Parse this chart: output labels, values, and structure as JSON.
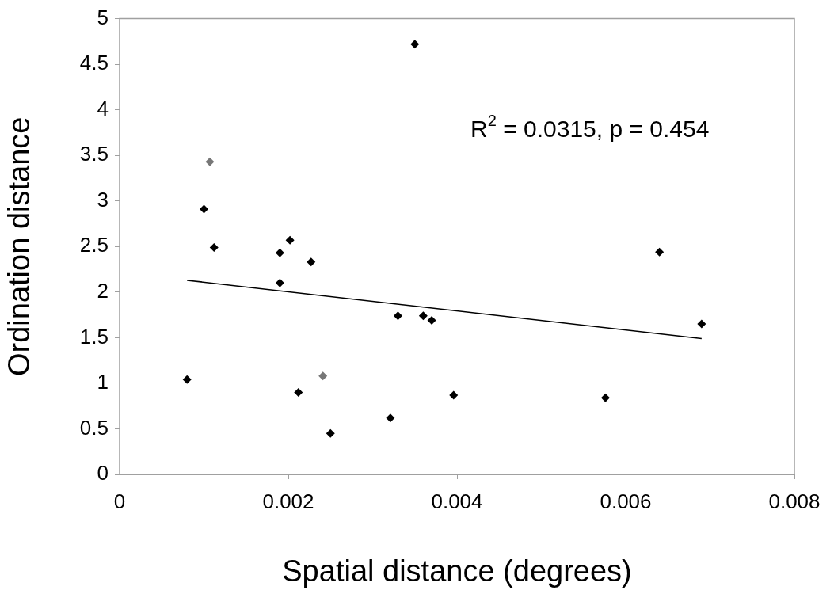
{
  "chart_data": {
    "type": "scatter",
    "xlabel": "Spatial distance (degrees)",
    "ylabel": "Ordination distance",
    "xlim": [
      0,
      0.008
    ],
    "xticks": [
      0,
      0.002,
      0.004,
      0.006,
      0.008
    ],
    "ylim": [
      0,
      5
    ],
    "yticks": [
      0,
      0.5,
      1,
      1.5,
      2,
      2.5,
      3,
      3.5,
      4,
      4.5,
      5
    ],
    "grid": false,
    "legend": false,
    "marker": "diamond",
    "annotations": [
      "R$^{2}$ = 0.0315, p = 0.454"
    ],
    "series": [
      {
        "x": [
          0.0008,
          0.001,
          0.00107,
          0.00112,
          0.0019,
          0.0019,
          0.00202,
          0.00227,
          0.00212,
          0.00241,
          0.0025,
          0.00321,
          0.0033,
          0.0035,
          0.0036,
          0.0037,
          0.00396,
          0.00576,
          0.0064,
          0.0069
        ],
        "values": [
          1.04,
          2.91,
          3.43,
          2.49,
          2.43,
          2.1,
          2.57,
          2.33,
          0.9,
          1.08,
          0.45,
          0.62,
          1.74,
          4.72,
          1.74,
          1.69,
          0.87,
          0.84,
          2.44,
          1.65
        ],
        "colors": [
          "#000000",
          "#000000",
          "#777777",
          "#000000",
          "#000000",
          "#000000",
          "#000000",
          "#000000",
          "#000000",
          "#777777",
          "#000000",
          "#000000",
          "#000000",
          "#000000",
          "#000000",
          "#000000",
          "#000000",
          "#000000",
          "#000000",
          "#000000"
        ]
      },
      {
        "type": "line",
        "color": "#000000",
        "marker": "none",
        "line_style": "solid",
        "x": [
          0.0008,
          0.0069
        ],
        "values": [
          2.13,
          1.49
        ]
      }
    ]
  }
}
